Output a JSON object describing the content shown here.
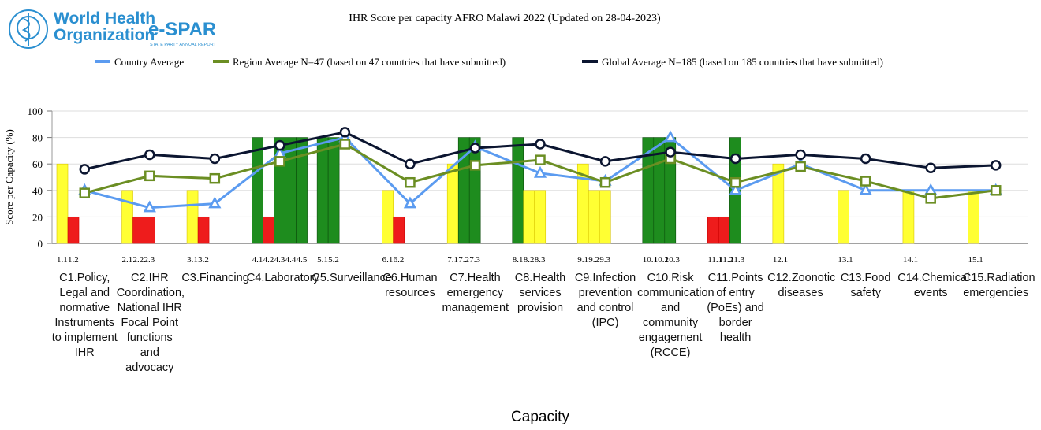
{
  "logo": {
    "line1": "World Health",
    "line2": "Organization",
    "brand": "e-SPAR",
    "brand_sub": "STATE PARTY ANNUAL REPORT"
  },
  "chart_data": {
    "type": "bar-line",
    "title": "IHR Score per capacity AFRO Malawi  2022  (Updated on 28-04-2023)",
    "y_label": "Score per Capacity (%)",
    "x_label": "Capacity",
    "ylim": [
      0,
      100
    ],
    "yticks": [
      0,
      20,
      40,
      60,
      80,
      100
    ],
    "grid": true,
    "capacities": [
      {
        "name": "C1.Policy, Legal and normative Instruments to implement IHR",
        "indicators": [
          "1.1",
          "1.2"
        ],
        "scores": [
          60,
          20
        ],
        "colors": [
          "#ffff33",
          "#ee1c1c"
        ]
      },
      {
        "name": "C2.IHR Coordination, National IHR Focal Point functions and advocacy",
        "indicators": [
          "2.1",
          "2.2",
          "2.3"
        ],
        "scores": [
          40,
          20,
          20
        ],
        "colors": [
          "#ffff33",
          "#ee1c1c",
          "#ee1c1c"
        ]
      },
      {
        "name": "C3.Financing",
        "indicators": [
          "3.1",
          "3.2"
        ],
        "scores": [
          40,
          20
        ],
        "colors": [
          "#ffff33",
          "#ee1c1c"
        ]
      },
      {
        "name": "C4.Laboratory",
        "indicators": [
          "4.1",
          "4.2",
          "4.3",
          "4.4",
          "4.5"
        ],
        "scores": [
          80,
          20,
          80,
          80,
          80
        ],
        "colors": [
          "#1e8c1e",
          "#ee1c1c",
          "#1e8c1e",
          "#1e8c1e",
          "#1e8c1e"
        ]
      },
      {
        "name": "C5.Surveillance",
        "indicators": [
          "5.1",
          "5.2"
        ],
        "scores": [
          80,
          80
        ],
        "colors": [
          "#1e8c1e",
          "#1e8c1e"
        ]
      },
      {
        "name": "C6.Human resources",
        "indicators": [
          "6.1",
          "6.2"
        ],
        "scores": [
          40,
          20
        ],
        "colors": [
          "#ffff33",
          "#ee1c1c"
        ]
      },
      {
        "name": "C7.Health emergency management",
        "indicators": [
          "7.1",
          "7.2",
          "7.3"
        ],
        "scores": [
          60,
          80,
          80
        ],
        "colors": [
          "#ffff33",
          "#1e8c1e",
          "#1e8c1e"
        ]
      },
      {
        "name": "C8.Health services provision",
        "indicators": [
          "8.1",
          "8.2",
          "8.3"
        ],
        "scores": [
          80,
          40,
          40
        ],
        "colors": [
          "#1e8c1e",
          "#ffff33",
          "#ffff33"
        ]
      },
      {
        "name": "C9.Infection prevention and control (IPC)",
        "indicators": [
          "9.1",
          "9.2",
          "9.3"
        ],
        "scores": [
          60,
          40,
          40
        ],
        "colors": [
          "#ffff33",
          "#ffff33",
          "#ffff33"
        ]
      },
      {
        "name": "C10.Risk communication and community engagement (RCCE)",
        "indicators": [
          "10.1",
          "10.2",
          "10.3"
        ],
        "scores": [
          80,
          80,
          80
        ],
        "colors": [
          "#1e8c1e",
          "#1e8c1e",
          "#1e8c1e"
        ]
      },
      {
        "name": "C11.Points of entry (PoEs) and border health",
        "indicators": [
          "11.1",
          "11.2",
          "11.3"
        ],
        "scores": [
          20,
          20,
          80
        ],
        "colors": [
          "#ee1c1c",
          "#ee1c1c",
          "#1e8c1e"
        ]
      },
      {
        "name": "C12.Zoonotic diseases",
        "indicators": [
          "12.1"
        ],
        "scores": [
          60
        ],
        "colors": [
          "#ffff33"
        ]
      },
      {
        "name": "C13.Food safety",
        "indicators": [
          "13.1"
        ],
        "scores": [
          40
        ],
        "colors": [
          "#ffff33"
        ]
      },
      {
        "name": "C14.Chemical events",
        "indicators": [
          "14.1"
        ],
        "scores": [
          40
        ],
        "colors": [
          "#ffff33"
        ]
      },
      {
        "name": "C15.Radiation emergencies",
        "indicators": [
          "15.1"
        ],
        "scores": [
          40
        ],
        "colors": [
          "#ffff33"
        ]
      }
    ],
    "series": [
      {
        "name": "Country Average",
        "color": "#5b9bf0",
        "marker": "triangle",
        "values": [
          40,
          27,
          30,
          68,
          80,
          30,
          73,
          53,
          47,
          80,
          40,
          60,
          40,
          40,
          40
        ]
      },
      {
        "name": "Region Average  N=47  (based on 47 countries that have submitted)",
        "color": "#6b8e23",
        "marker": "square",
        "values": [
          38,
          51,
          49,
          62,
          75,
          46,
          59,
          63,
          46,
          64,
          46,
          58,
          47,
          34,
          40
        ]
      },
      {
        "name": "Global Average  N=185  (based on 185 countries that have submitted)",
        "color": "#0b1530",
        "marker": "circle",
        "values": [
          56,
          67,
          64,
          74,
          84,
          60,
          72,
          75,
          62,
          69,
          64,
          67,
          64,
          57,
          59
        ]
      }
    ]
  }
}
